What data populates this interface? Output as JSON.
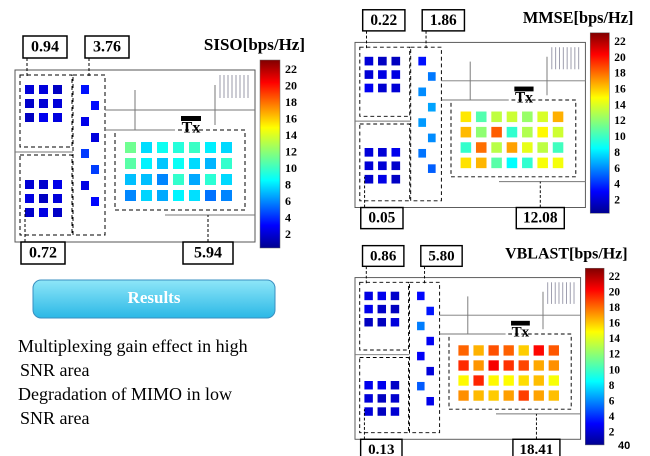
{
  "panels": [
    {
      "title": "SISO[bps/Hz]",
      "scale_ticks": [
        22,
        20,
        18,
        16,
        14,
        12,
        10,
        8,
        6,
        4,
        2
      ],
      "region_labels": [
        "0.94",
        "3.76",
        "0.72",
        "5.94"
      ],
      "tx": "Tx"
    },
    {
      "title": "MMSE[bps/Hz]",
      "scale_ticks": [
        22,
        20,
        18,
        16,
        14,
        12,
        10,
        8,
        6,
        4,
        2
      ],
      "region_labels": [
        "0.22",
        "1.86",
        "0.05",
        "12.08"
      ],
      "tx": "Tx"
    },
    {
      "title": "VBLAST[bps/Hz]",
      "scale_ticks": [
        22,
        20,
        18,
        16,
        14,
        12,
        10,
        8,
        6,
        4,
        2
      ],
      "region_labels": [
        "0.86",
        "5.80",
        "0.13",
        "18.41"
      ],
      "tx": "Tx"
    }
  ],
  "results_button": "Results",
  "bullets": [
    [
      "Multiplexing gain effect in high",
      "SNR area"
    ],
    [
      "Degradation of MIMO in low",
      "SNR area"
    ]
  ],
  "page_number": "40"
}
